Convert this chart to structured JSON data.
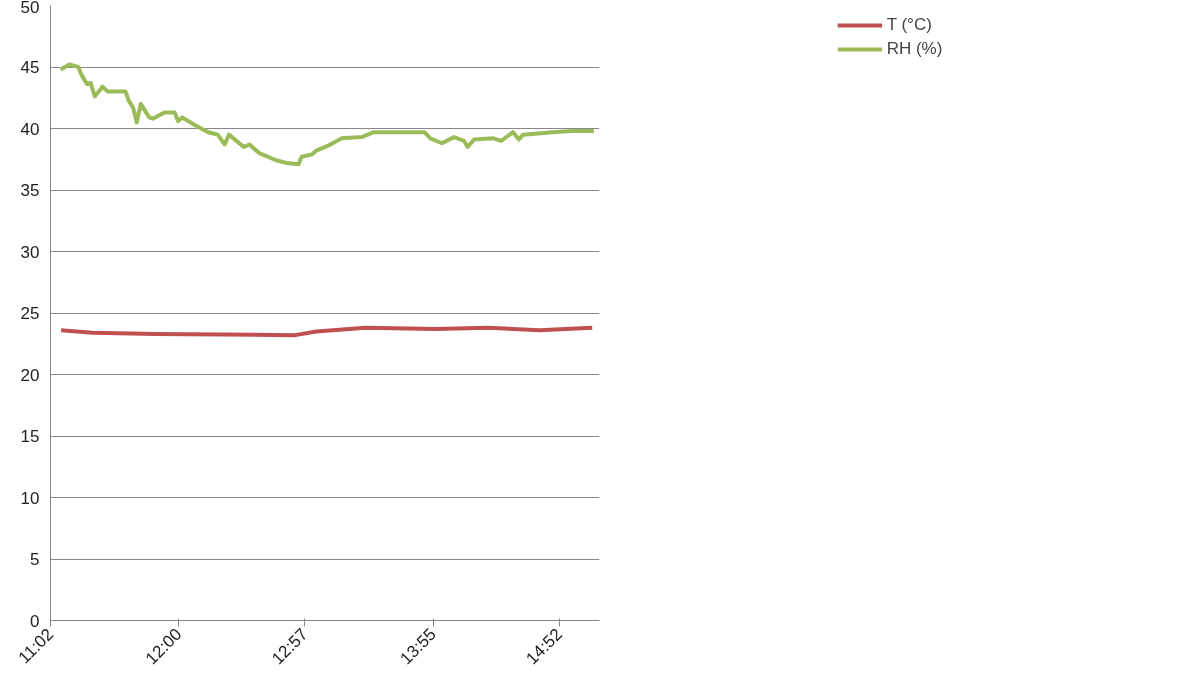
{
  "chart_data": {
    "type": "line",
    "xlim": [
      11.0333,
      15.17
    ],
    "xticks": [
      {
        "value": 11.0333,
        "label": "11:02"
      },
      {
        "value": 12.0,
        "label": "12:00"
      },
      {
        "value": 12.95,
        "label": "12:57"
      },
      {
        "value": 13.9167,
        "label": "13:55"
      },
      {
        "value": 14.8667,
        "label": "14:52"
      }
    ],
    "ylim": [
      0,
      50
    ],
    "yticks": [
      0,
      5,
      10,
      15,
      20,
      25,
      30,
      35,
      40,
      45,
      50
    ],
    "grid": "y",
    "legend": "top right",
    "marker": "none",
    "line_style": "solid",
    "series": [
      {
        "name": "T (°C)",
        "color": "#c0504d",
        "x": [
          11.113,
          11.349,
          11.826,
          12.876,
          13.036,
          13.406,
          13.931,
          14.327,
          14.719,
          15.115
        ],
        "values": [
          23.6,
          23.4,
          23.3,
          23.2,
          23.5,
          23.8,
          23.7,
          23.8,
          23.6,
          23.8
        ]
      },
      {
        "name": "RH (%)",
        "color": "#9bbb59",
        "x": [
          11.109,
          11.176,
          11.243,
          11.265,
          11.309,
          11.336,
          11.367,
          11.425,
          11.465,
          11.599,
          11.621,
          11.656,
          11.683,
          11.714,
          11.777,
          11.803,
          11.892,
          11.968,
          11.995,
          12.026,
          12.133,
          12.222,
          12.293,
          12.346,
          12.378,
          12.489,
          12.533,
          12.605,
          12.738,
          12.814,
          12.903,
          12.925,
          13.005,
          13.036,
          13.125,
          13.228,
          13.379,
          13.468,
          13.628,
          13.851,
          13.895,
          13.984,
          14.073,
          14.149,
          14.176,
          14.225,
          14.372,
          14.429,
          14.518,
          14.563,
          14.594,
          14.817,
          14.964,
          15.128
        ],
        "values": [
          44.8,
          45.2,
          45.0,
          44.4,
          43.6,
          43.7,
          42.6,
          43.4,
          43.0,
          43.0,
          42.3,
          41.7,
          40.5,
          42.0,
          40.9,
          40.8,
          41.3,
          41.3,
          40.6,
          40.9,
          40.2,
          39.7,
          39.5,
          38.7,
          39.5,
          38.5,
          38.7,
          38.0,
          37.4,
          37.2,
          37.1,
          37.7,
          37.9,
          38.2,
          38.6,
          39.2,
          39.3,
          39.7,
          39.7,
          39.7,
          39.2,
          38.8,
          39.3,
          39.0,
          38.5,
          39.1,
          39.2,
          39.0,
          39.7,
          39.1,
          39.5,
          39.7,
          39.8,
          39.8
        ]
      }
    ]
  }
}
